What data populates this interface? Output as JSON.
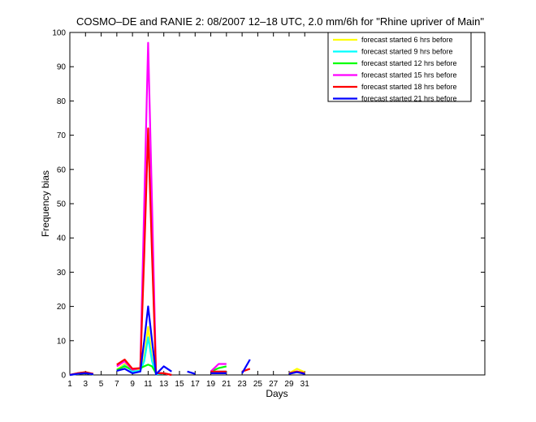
{
  "chart_data": {
    "type": "line",
    "title": "COSMO–DE and RANIE 2: 08/2007 12–18 UTC, 2.0 mm/6h for \"Rhine upriver of Main\"",
    "xlabel": "Days",
    "ylabel": "Frequency bias",
    "xlim": [
      1,
      54
    ],
    "ylim": [
      0,
      100
    ],
    "xticks": [
      1,
      3,
      5,
      7,
      9,
      11,
      13,
      15,
      17,
      19,
      21,
      23,
      25,
      27,
      29,
      31
    ],
    "yticks": [
      0,
      10,
      20,
      30,
      40,
      50,
      60,
      70,
      80,
      90,
      100
    ],
    "grid": false,
    "legend_position": "top-right",
    "series": [
      {
        "name": "forecast started 6 hrs before",
        "color": "#ffff00",
        "points": [
          [
            1,
            0
          ],
          [
            2,
            0.3
          ],
          [
            3,
            0.5
          ],
          [
            4,
            0.2
          ],
          [
            7,
            1.5
          ],
          [
            8,
            3.2
          ],
          [
            9,
            1.2
          ],
          [
            10,
            1.5
          ],
          [
            10.5,
            5
          ],
          [
            11,
            14
          ],
          [
            11.5,
            5
          ],
          [
            12,
            0.3
          ],
          [
            13,
            0.5
          ],
          [
            14,
            0
          ],
          [
            19,
            0.5
          ],
          [
            20,
            0.5
          ],
          [
            21,
            0.5
          ],
          [
            29,
            0.5
          ],
          [
            30,
            1.8
          ],
          [
            31,
            0.8
          ]
        ]
      },
      {
        "name": "forecast started 9 hrs before",
        "color": "#00ffff",
        "points": [
          [
            1,
            0
          ],
          [
            2,
            0.3
          ],
          [
            3,
            0.5
          ],
          [
            4,
            0.2
          ],
          [
            7,
            1.2
          ],
          [
            8,
            2.8
          ],
          [
            9,
            1
          ],
          [
            10,
            1.2
          ],
          [
            10.5,
            4
          ],
          [
            11,
            11
          ],
          [
            11.5,
            4
          ],
          [
            12,
            0.2
          ],
          [
            13,
            0.5
          ],
          [
            14,
            0
          ],
          [
            19,
            0.8
          ],
          [
            20,
            1
          ],
          [
            21,
            1
          ],
          [
            29,
            0.5
          ],
          [
            30,
            1
          ],
          [
            31,
            0.5
          ]
        ]
      },
      {
        "name": "forecast started 12 hrs before",
        "color": "#00ff00",
        "points": [
          [
            1,
            0
          ],
          [
            2,
            0.5
          ],
          [
            3,
            0.8
          ],
          [
            4,
            0.2
          ],
          [
            7,
            1.5
          ],
          [
            8,
            2.5
          ],
          [
            9,
            1.5
          ],
          [
            10,
            2
          ],
          [
            10.5,
            2.5
          ],
          [
            11,
            3
          ],
          [
            11.5,
            2.5
          ],
          [
            12,
            0.5
          ],
          [
            13,
            0.5
          ],
          [
            14,
            0
          ],
          [
            19,
            1
          ],
          [
            20,
            2
          ],
          [
            21,
            2.5
          ],
          [
            29,
            0.5
          ],
          [
            30,
            1
          ],
          [
            31,
            0.5
          ]
        ]
      },
      {
        "name": "forecast started 15 hrs before",
        "color": "#ff00ff",
        "points": [
          [
            1,
            0
          ],
          [
            2,
            0.5
          ],
          [
            3,
            0.7
          ],
          [
            4,
            0.3
          ],
          [
            7,
            2.5
          ],
          [
            8,
            4
          ],
          [
            9,
            1.5
          ],
          [
            10,
            2
          ],
          [
            10.5,
            50
          ],
          [
            11,
            97
          ],
          [
            11.5,
            50
          ],
          [
            12,
            0.5
          ],
          [
            13,
            0.5
          ],
          [
            14,
            0
          ],
          [
            19,
            1
          ],
          [
            20,
            3.2
          ],
          [
            21,
            3.2
          ],
          [
            29,
            0.5
          ],
          [
            30,
            1
          ],
          [
            31,
            0.5
          ]
        ]
      },
      {
        "name": "forecast started 18 hrs before",
        "color": "#ff0000",
        "points": [
          [
            1,
            0
          ],
          [
            2,
            0.5
          ],
          [
            3,
            0.8
          ],
          [
            4,
            0.3
          ],
          [
            7,
            3
          ],
          [
            8,
            4.5
          ],
          [
            9,
            1.8
          ],
          [
            10,
            2
          ],
          [
            10.5,
            35
          ],
          [
            11,
            72
          ],
          [
            11.5,
            35
          ],
          [
            12,
            0.5
          ],
          [
            13,
            0.5
          ],
          [
            14,
            0
          ],
          [
            19,
            1
          ],
          [
            20,
            1
          ],
          [
            21,
            1
          ],
          [
            23,
            1
          ],
          [
            24,
            1.8
          ],
          [
            29,
            0.5
          ],
          [
            30,
            1
          ],
          [
            31,
            0.5
          ]
        ]
      },
      {
        "name": "forecast started 21 hrs before",
        "color": "#0000ff",
        "points": [
          [
            1,
            0
          ],
          [
            2,
            0.3
          ],
          [
            3,
            0.5
          ],
          [
            4,
            0.2
          ],
          [
            7,
            1.2
          ],
          [
            8,
            1.8
          ],
          [
            9,
            0.5
          ],
          [
            10,
            1
          ],
          [
            10.5,
            10
          ],
          [
            11,
            20
          ],
          [
            11.5,
            10
          ],
          [
            12,
            0.2
          ],
          [
            13,
            2.5
          ],
          [
            14,
            1
          ],
          [
            16,
            1
          ],
          [
            17,
            0.3
          ],
          [
            19,
            0.5
          ],
          [
            20,
            0.5
          ],
          [
            21,
            0.5
          ],
          [
            23,
            0.5
          ],
          [
            24,
            4.5
          ],
          [
            29,
            0.3
          ],
          [
            30,
            0.8
          ],
          [
            31,
            0.3
          ]
        ]
      }
    ]
  }
}
